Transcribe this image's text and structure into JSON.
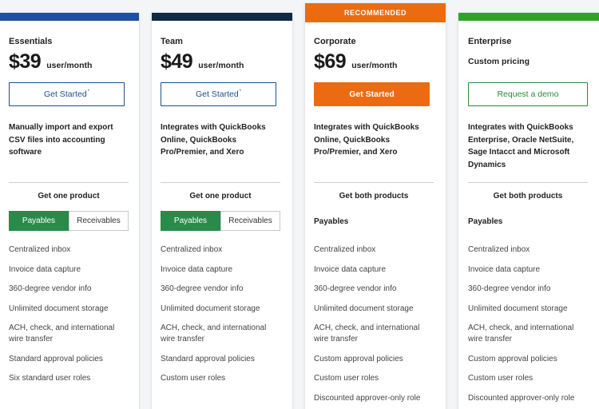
{
  "colors": {
    "essentials_bar": "#1f4fa8",
    "team_bar": "#0f2a44",
    "corporate_bar": "#ec6b12",
    "enterprise_bar": "#2ea32a",
    "toggle_active": "#2a8a4a"
  },
  "plans": [
    {
      "name": "Essentials",
      "price": "$39",
      "unit": "user/month",
      "cta": "Get Started",
      "cta_mark": "*",
      "description": "Manually import and export CSV files into accounting software",
      "group_title": "Get one product",
      "toggle": [
        "Payables",
        "Receivables"
      ],
      "features": [
        "Centralized inbox",
        "Invoice data capture",
        "360-degree vendor info",
        "Unlimited document storage",
        "ACH, check, and international wire transfer",
        "Standard approval policies",
        "Six standard user roles"
      ]
    },
    {
      "name": "Team",
      "price": "$49",
      "unit": "user/month",
      "cta": "Get Started",
      "cta_mark": "*",
      "description": "Integrates with QuickBooks Online, QuickBooks Pro/Premier, and Xero",
      "group_title": "Get one product",
      "toggle": [
        "Payables",
        "Receivables"
      ],
      "features": [
        "Centralized inbox",
        "Invoice data capture",
        "360-degree vendor info",
        "Unlimited document storage",
        "ACH, check, and international wire transfer",
        "Standard approval policies",
        "Custom user roles"
      ]
    },
    {
      "badge": "RECOMMENDED",
      "name": "Corporate",
      "price": "$69",
      "unit": "user/month",
      "cta": "Get Started",
      "description": "Integrates with QuickBooks Online, QuickBooks Pro/Premier, and Xero",
      "group_title": "Get both products",
      "product_label": "Payables",
      "features": [
        "Centralized inbox",
        "Invoice data capture",
        "360-degree vendor info",
        "Unlimited document storage",
        "ACH, check, and international wire transfer",
        "Custom approval policies",
        "Custom user roles",
        "Discounted approver-only role"
      ]
    },
    {
      "name": "Enterprise",
      "custom_pricing": "Custom pricing",
      "cta": "Request a demo",
      "description": "Integrates with QuickBooks Enterprise, Oracle NetSuite, Sage Intacct and Microsoft Dynamics",
      "group_title": "Get both products",
      "product_label": "Payables",
      "features": [
        "Centralized inbox",
        "Invoice data capture",
        "360-degree vendor info",
        "Unlimited document storage",
        "ACH, check, and international wire transfer",
        "Custom approval policies",
        "Custom user roles",
        "Discounted approver-only role"
      ]
    }
  ]
}
